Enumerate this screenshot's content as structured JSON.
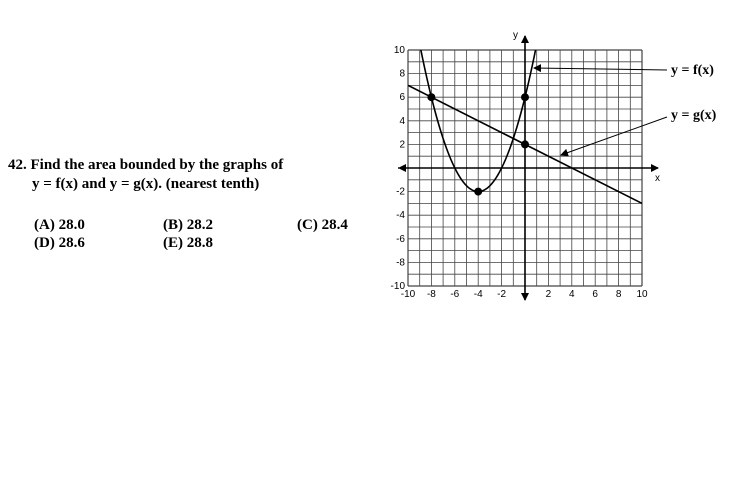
{
  "question": {
    "line1": "42. Find the area bounded by the graphs of",
    "line2": "y = f(x)  and  y = g(x).  (nearest tenth)"
  },
  "choices": [
    {
      "label": "(A)  28.0"
    },
    {
      "label": "(B)  28.2"
    },
    {
      "label": "(C)  28.4"
    },
    {
      "label": "(D)  28.6"
    },
    {
      "label": "(E)  28.8"
    }
  ],
  "chart_data": {
    "type": "line",
    "x_axis_label": "x",
    "y_axis_label": "y",
    "xlim": [
      -10,
      10
    ],
    "ylim": [
      -10,
      10
    ],
    "grid": true,
    "x_ticks": [
      "-10",
      "-8",
      "-6",
      "-4",
      "-2",
      "2",
      "4",
      "6",
      "8",
      "10"
    ],
    "y_ticks": [
      "10",
      "8",
      "6",
      "4",
      "2",
      "-2",
      "-4",
      "-6",
      "-8",
      "-10"
    ],
    "series": [
      {
        "name": "y = f(x)",
        "kind": "parabola",
        "vertex": [
          -4,
          -2
        ],
        "points": [
          [
            -8,
            6
          ],
          [
            -4,
            -2
          ],
          [
            0,
            6
          ]
        ]
      },
      {
        "name": "y = g(x)",
        "kind": "line",
        "points": [
          [
            -10,
            7
          ],
          [
            -8,
            6
          ],
          [
            0,
            2
          ],
          [
            10,
            -3
          ]
        ]
      }
    ],
    "marked_points": [
      [
        -8,
        6
      ],
      [
        -4,
        -2
      ],
      [
        0,
        6
      ],
      [
        0,
        2
      ]
    ],
    "callouts": [
      "y = f(x)",
      "y = g(x)"
    ]
  }
}
